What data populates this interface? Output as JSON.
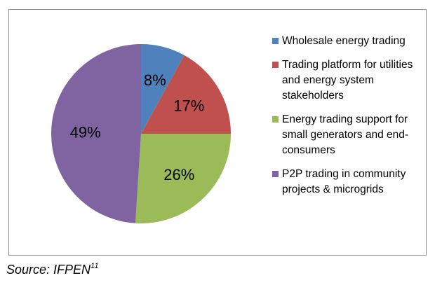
{
  "chart_data": {
    "type": "pie",
    "categories": [
      "Wholesale energy trading",
      "Trading platform for utilities and energy system stakeholders",
      "Energy trading support for small generators and end-consumers",
      "P2P trading in community projects & microgrids"
    ],
    "values": [
      8,
      17,
      26,
      49
    ],
    "labels": [
      "8%",
      "17%",
      "26%",
      "49%"
    ],
    "colors": [
      "#4f81bd",
      "#c0504d",
      "#9bbb59",
      "#8064a2"
    ],
    "legend_position": "right",
    "start": "top, clockwise"
  },
  "legend": {
    "items": [
      {
        "label": "Wholesale energy trading",
        "color": "#4f81bd"
      },
      {
        "label": "Trading platform for utilities and energy system stakeholders",
        "color": "#c0504d"
      },
      {
        "label": "Energy trading support for small generators and end-consumers",
        "color": "#9bbb59"
      },
      {
        "label": "P2P trading in community projects & microgrids",
        "color": "#8064a2"
      }
    ]
  },
  "source": {
    "text": "Source: IFPEN",
    "footnote": "11"
  }
}
